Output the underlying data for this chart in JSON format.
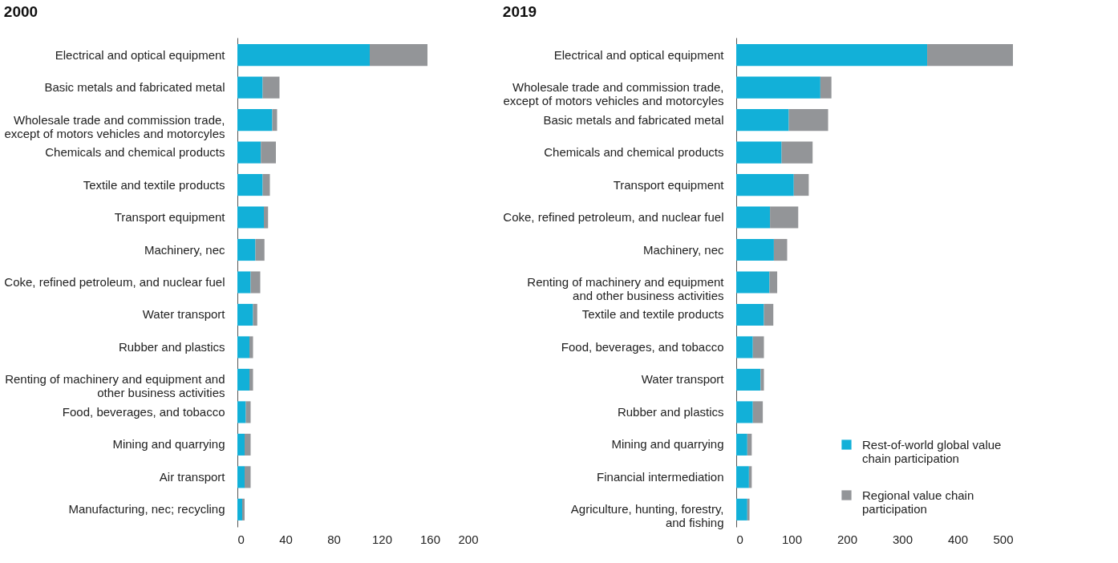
{
  "chart_data": [
    {
      "type": "bar",
      "orientation": "horizontal",
      "stacked": true,
      "title": "2000",
      "categories": [
        "Electrical and optical equipment",
        "Basic metals and fabricated metal",
        "Wholesale trade and commission trade,\nexcept of motors vehicles and motorcyles",
        "Chemicals and chemical products",
        "Textile and textile products",
        "Transport equipment",
        "Machinery, nec",
        "Coke, refined petroleum, and nuclear fuel",
        "Water transport",
        "Rubber and plastics",
        "Renting of machinery and equipment and\nother business activities",
        "Food, beverages, and tobacco",
        "Mining and quarrying",
        "Air transport",
        "Manufacturing, nec; recycling"
      ],
      "series": [
        {
          "color": "#12b0d8",
          "values": [
            110,
            21,
            29,
            19.5,
            21,
            22,
            15,
            11,
            13,
            10,
            10,
            7,
            6,
            6,
            4
          ]
        },
        {
          "color": "#939598",
          "values": [
            48,
            14,
            4,
            12.5,
            6,
            3.5,
            7.5,
            8,
            3.5,
            3,
            3,
            4,
            5,
            5,
            2
          ]
        }
      ],
      "xlim": [
        0,
        200
      ],
      "xticks": [
        0,
        40,
        80,
        120,
        160,
        200
      ],
      "grid": false,
      "legend": false
    },
    {
      "type": "bar",
      "orientation": "horizontal",
      "stacked": true,
      "title": "2019",
      "categories": [
        "Electrical and optical equipment",
        "Wholesale trade and commission trade,\nexcept of motors vehicles and motorcyles",
        "Basic metals and fabricated metal",
        "Chemicals and chemical products",
        "Transport equipment",
        "Coke, refined petroleum, and nuclear fuel",
        "Machinery, nec",
        "Renting of machinery and equipment\nand other business activities",
        "Textile and textile products",
        "Food, beverages, and tobacco",
        "Water transport",
        "Rubber and plastics",
        "Mining and quarrying",
        "Financial intermediation",
        "Agriculture, hunting, forestry,\nand fishing"
      ],
      "series": [
        {
          "name": "Rest-of-world global value chain participation",
          "color": "#12b0d8",
          "values": [
            345,
            152,
            95,
            82,
            104,
            61,
            68,
            60,
            50,
            30,
            44,
            30,
            20,
            23,
            20
          ]
        },
        {
          "name": "Regional value chain participation",
          "color": "#939598",
          "values": [
            155,
            20,
            71,
            56,
            27,
            51,
            24,
            14,
            17,
            20,
            6,
            18,
            8,
            5,
            4
          ]
        }
      ],
      "xlim": [
        0,
        500
      ],
      "xticks": [
        0,
        100,
        200,
        300,
        400,
        500
      ],
      "grid": false,
      "legend": "bottom right"
    }
  ]
}
